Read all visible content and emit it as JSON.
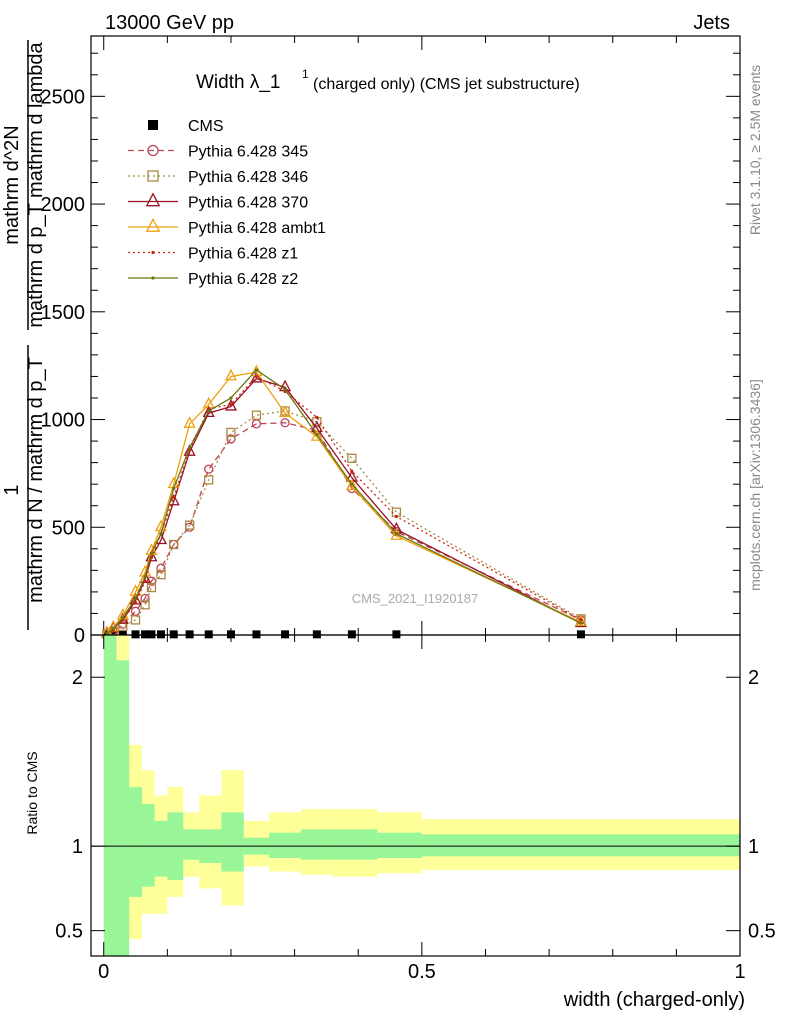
{
  "header": {
    "left": "13000 GeV pp",
    "right": "Jets",
    "side_top": "Rivet 3.1.10, ≥ 2.5M events",
    "side_bottom": "mcplots.cern.ch [arXiv:1306.3436]",
    "watermark": "CMS_2021_I1920187"
  },
  "chart_data": [
    {
      "type": "line",
      "panel": "main",
      "title": {
        "main": "Width λ_1",
        "superscript": "1",
        "suffix": "(charged only) (CMS jet substructure)"
      },
      "ylabel": {
        "numerator_top": "1",
        "denominator_top": "mathrm d N / mathrm d p_T",
        "numerator_bottom": "mathrm d^2N",
        "denominator_bottom": "mathrm d p_T mathrm d lambda"
      },
      "ylim": [
        0,
        2780
      ],
      "yticks": [
        0,
        500,
        1000,
        1500,
        2000,
        2500
      ],
      "ytick_labels": [
        "0",
        "500",
        "1000",
        "1500",
        "2000",
        "2500"
      ],
      "xlim": [
        -0.02,
        1.0
      ],
      "legend_position": "top-left",
      "x": [
        0.005,
        0.015,
        0.03,
        0.05,
        0.065,
        0.075,
        0.09,
        0.11,
        0.135,
        0.165,
        0.2,
        0.24,
        0.285,
        0.335,
        0.39,
        0.46,
        0.75
      ],
      "series": [
        {
          "name": "CMS",
          "color": "#000000",
          "marker": "square",
          "line": "none",
          "values": [
            3,
            3,
            3,
            3,
            3,
            3,
            3,
            3,
            3,
            3,
            3,
            3,
            3,
            3,
            3,
            3,
            3
          ]
        },
        {
          "name": "Pythia 6.428 345",
          "color": "#bb4455",
          "marker": "circle",
          "line": "dashed",
          "values": [
            5,
            20,
            50,
            110,
            170,
            250,
            310,
            420,
            500,
            770,
            910,
            980,
            985,
            950,
            680,
            480,
            70
          ]
        },
        {
          "name": "Pythia 6.428 346",
          "color": "#aa8844",
          "marker": "square-open",
          "line": "dotted",
          "values": [
            5,
            15,
            40,
            70,
            140,
            220,
            280,
            420,
            510,
            720,
            940,
            1020,
            1040,
            990,
            820,
            570,
            75
          ]
        },
        {
          "name": "Pythia 6.428 370",
          "color": "#991122",
          "marker": "triangle",
          "line": "solid",
          "values": [
            8,
            30,
            70,
            160,
            260,
            360,
            440,
            620,
            850,
            1030,
            1060,
            1190,
            1150,
            960,
            730,
            490,
            55
          ]
        },
        {
          "name": "Pythia 6.428 ambt1",
          "color": "#eea011",
          "marker": "triangle-open",
          "line": "solid",
          "values": [
            10,
            35,
            90,
            200,
            290,
            390,
            500,
            700,
            980,
            1070,
            1200,
            1220,
            1030,
            920,
            690,
            460,
            60
          ]
        },
        {
          "name": "Pythia 6.428 z1",
          "color": "#cc2211",
          "marker": "dot",
          "line": "dotted",
          "values": [
            8,
            25,
            70,
            150,
            250,
            360,
            470,
            640,
            860,
            1050,
            1070,
            1200,
            1130,
            1010,
            760,
            550,
            70
          ]
        },
        {
          "name": "Pythia 6.428 z2",
          "color": "#667711",
          "marker": "dot",
          "line": "solid",
          "values": [
            8,
            28,
            80,
            170,
            270,
            380,
            470,
            680,
            870,
            1040,
            1100,
            1230,
            1140,
            930,
            700,
            470,
            55
          ]
        }
      ]
    },
    {
      "type": "area",
      "panel": "ratio",
      "ylabel": "Ratio to CMS",
      "xlabel": "width (charged-only)",
      "ylim": [
        0.35,
        2.25
      ],
      "yticks": [
        0.5,
        1,
        2
      ],
      "ytick_labels": [
        "0.5",
        "1",
        "2"
      ],
      "xticks": [
        0,
        0.5,
        1
      ],
      "xtick_labels": [
        "0",
        "0.5",
        "1"
      ],
      "xlim": [
        -0.02,
        1.0
      ],
      "bin_edges": [
        0.0,
        0.02,
        0.04,
        0.06,
        0.08,
        0.1,
        0.125,
        0.15,
        0.185,
        0.22,
        0.26,
        0.31,
        0.36,
        0.43,
        0.5,
        1.0
      ],
      "bands": [
        {
          "name": "stat_uncertainty",
          "color": "#98f598",
          "upper": [
            2.4,
            2.1,
            1.35,
            1.25,
            1.15,
            1.2,
            1.1,
            1.1,
            1.2,
            1.05,
            1.08,
            1.1,
            1.1,
            1.08,
            1.07
          ],
          "lower": [
            0.35,
            0.35,
            0.7,
            0.76,
            0.82,
            0.8,
            0.92,
            0.9,
            0.85,
            0.95,
            0.93,
            0.92,
            0.92,
            0.93,
            0.94
          ]
        },
        {
          "name": "total_uncertainty",
          "color": "#ffff99",
          "upper": [
            2.4,
            2.4,
            1.6,
            1.45,
            1.3,
            1.35,
            1.2,
            1.3,
            1.45,
            1.15,
            1.2,
            1.22,
            1.22,
            1.2,
            1.16
          ],
          "lower": [
            0.35,
            0.35,
            0.45,
            0.6,
            0.6,
            0.7,
            0.82,
            0.75,
            0.65,
            0.88,
            0.85,
            0.83,
            0.82,
            0.84,
            0.86
          ]
        }
      ],
      "reference_line": 1
    }
  ]
}
